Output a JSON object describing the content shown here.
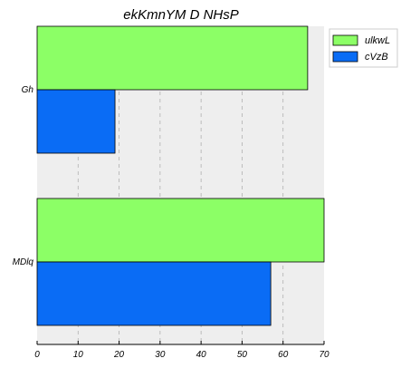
{
  "chart_data": {
    "type": "bar",
    "orientation": "horizontal",
    "title": "ekKmnYM D NHsP",
    "categories": [
      "Gh",
      "MDlq"
    ],
    "series": [
      {
        "name": "ulkwL",
        "values": [
          66,
          70
        ],
        "color": "#8cff66"
      },
      {
        "name": "cVzB",
        "values": [
          19,
          57
        ],
        "color": "#0a6cf5"
      }
    ],
    "xlim": [
      0,
      70
    ],
    "xticks": [
      0,
      10,
      20,
      30,
      40,
      50,
      60,
      70
    ],
    "grid": true,
    "legend": "top-right",
    "background_color": "#eeeeee"
  }
}
